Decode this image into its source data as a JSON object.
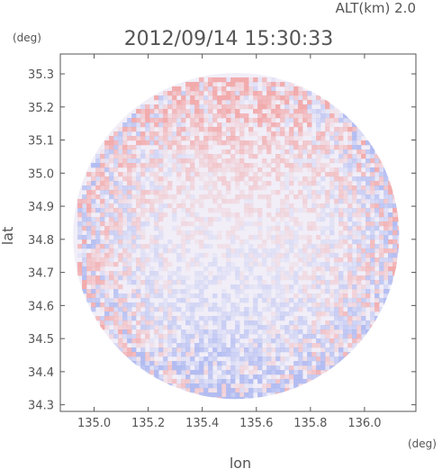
{
  "chart_data": {
    "type": "heatmap",
    "title": "2012/09/14 15:30:33",
    "subtitle": "ALT(km) 2.0",
    "xlabel": "lon",
    "ylabel": "lat",
    "x_unit": "(deg)",
    "y_unit": "(deg)",
    "xlim": [
      134.875,
      136.19
    ],
    "ylim": [
      34.28,
      35.36
    ],
    "xticks": [
      "135.0",
      "135.2",
      "135.4",
      "135.6",
      "135.8",
      "136.0"
    ],
    "yticks": [
      "34.3",
      "34.4",
      "34.5",
      "34.6",
      "34.7",
      "34.8",
      "34.9",
      "35.0",
      "35.1",
      "35.2",
      "35.3"
    ],
    "circle": {
      "center_lon": 135.525,
      "center_lat": 34.81,
      "radius_deg_lon": 0.603
    },
    "colors": {
      "positive": "#f2a0a0",
      "negative": "#a8b4f0",
      "neutral": "#f1eef8",
      "frame": "#555555"
    },
    "grid": false,
    "legend": "none"
  }
}
